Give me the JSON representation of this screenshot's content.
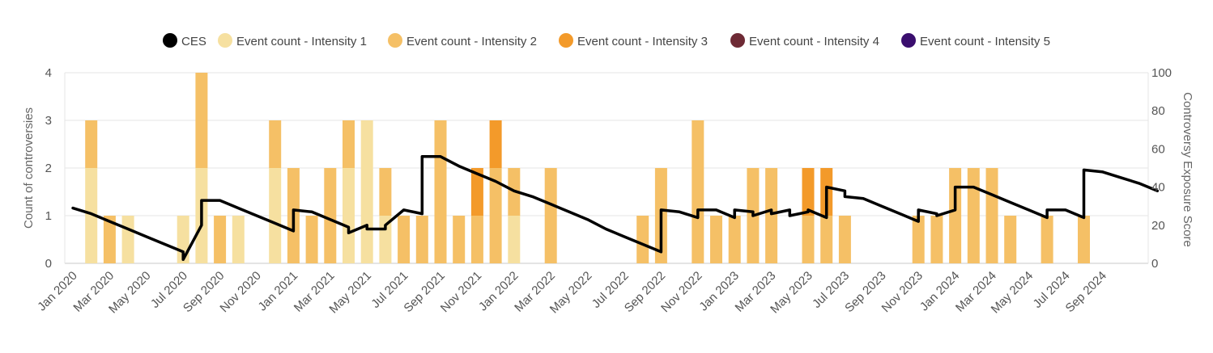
{
  "chart_data": {
    "type": "bar",
    "stacked": true,
    "legend_position": "top-center",
    "grid": true,
    "y_left": {
      "label": "Count of controversies",
      "ticks": [
        "0",
        "1",
        "2",
        "3",
        "4"
      ],
      "range": [
        0,
        4
      ]
    },
    "y_right": {
      "label": "Controversy Exposure Score",
      "ticks": [
        "0",
        "20",
        "40",
        "60",
        "80",
        "100"
      ],
      "range": [
        0,
        100
      ]
    },
    "x_ticks": [
      "Jan 2020",
      "Mar 2020",
      "May 2020",
      "Jul 2020",
      "Sep 2020",
      "Nov 2020",
      "Jan 2021",
      "Mar 2021",
      "May 2021",
      "Jul 2021",
      "Sep 2021",
      "Nov 2021",
      "Jan 2022",
      "Mar 2022",
      "May 2022",
      "Jul 2022",
      "Sep 2022",
      "Nov 2022",
      "Jan 2023",
      "Mar 2023",
      "May 2023",
      "Jul 2023",
      "Sep 2023",
      "Nov 2023",
      "Jan 2024",
      "Mar 2024",
      "May 2024",
      "Jul 2024",
      "Sep 2024"
    ],
    "legend": [
      {
        "name": "CES",
        "color": "#000000"
      },
      {
        "name": "Event count - Intensity 1",
        "color": "#f6e0a0"
      },
      {
        "name": "Event count - Intensity 2",
        "color": "#f5c066"
      },
      {
        "name": "Event count - Intensity 3",
        "color": "#f39a2a"
      },
      {
        "name": "Event count - Intensity 4",
        "color": "#6e2a35"
      },
      {
        "name": "Event count - Intensity 5",
        "color": "#3a0e6e"
      }
    ],
    "bars": [
      {
        "month": "Feb 2020",
        "i1": 2,
        "i2": 1,
        "i3": 0
      },
      {
        "month": "Mar 2020",
        "i1": 0,
        "i2": 1,
        "i3": 0
      },
      {
        "month": "Apr 2020",
        "i1": 1,
        "i2": 0,
        "i3": 0
      },
      {
        "month": "Jul 2020",
        "i1": 1,
        "i2": 0,
        "i3": 0
      },
      {
        "month": "Aug 2020",
        "i1": 2,
        "i2": 2,
        "i3": 0
      },
      {
        "month": "Sep 2020",
        "i1": 0,
        "i2": 1,
        "i3": 0
      },
      {
        "month": "Oct 2020",
        "i1": 1,
        "i2": 0,
        "i3": 0
      },
      {
        "month": "Dec 2020",
        "i1": 2,
        "i2": 1,
        "i3": 0
      },
      {
        "month": "Jan 2021",
        "i1": 0,
        "i2": 2,
        "i3": 0
      },
      {
        "month": "Feb 2021",
        "i1": 0,
        "i2": 1,
        "i3": 0
      },
      {
        "month": "Mar 2021",
        "i1": 0,
        "i2": 2,
        "i3": 0
      },
      {
        "month": "Apr 2021",
        "i1": 2,
        "i2": 1,
        "i3": 0
      },
      {
        "month": "May 2021",
        "i1": 3,
        "i2": 0,
        "i3": 0
      },
      {
        "month": "Jun 2021",
        "i1": 1,
        "i2": 1,
        "i3": 0
      },
      {
        "month": "Jul 2021",
        "i1": 0,
        "i2": 1,
        "i3": 0
      },
      {
        "month": "Aug 2021",
        "i1": 0,
        "i2": 1,
        "i3": 0
      },
      {
        "month": "Sep 2021",
        "i1": 0,
        "i2": 3,
        "i3": 0
      },
      {
        "month": "Oct 2021",
        "i1": 0,
        "i2": 1,
        "i3": 0
      },
      {
        "month": "Nov 2021",
        "i1": 0,
        "i2": 1,
        "i3": 1
      },
      {
        "month": "Dec 2021",
        "i1": 0,
        "i2": 2,
        "i3": 1
      },
      {
        "month": "Jan 2022",
        "i1": 1,
        "i2": 1,
        "i3": 0
      },
      {
        "month": "Mar 2022",
        "i1": 0,
        "i2": 2,
        "i3": 0
      },
      {
        "month": "Aug 2022",
        "i1": 0,
        "i2": 1,
        "i3": 0
      },
      {
        "month": "Sep 2022",
        "i1": 0,
        "i2": 2,
        "i3": 0
      },
      {
        "month": "Nov 2022",
        "i1": 0,
        "i2": 3,
        "i3": 0
      },
      {
        "month": "Dec 2022",
        "i1": 0,
        "i2": 1,
        "i3": 0
      },
      {
        "month": "Jan 2023",
        "i1": 0,
        "i2": 1,
        "i3": 0
      },
      {
        "month": "Feb 2023",
        "i1": 0,
        "i2": 2,
        "i3": 0
      },
      {
        "month": "Mar 2023",
        "i1": 0,
        "i2": 2,
        "i3": 0
      },
      {
        "month": "May 2023",
        "i1": 0,
        "i2": 1,
        "i3": 1
      },
      {
        "month": "Jun 2023",
        "i1": 0,
        "i2": 1,
        "i3": 1
      },
      {
        "month": "Jul 2023",
        "i1": 0,
        "i2": 1,
        "i3": 0
      },
      {
        "month": "Nov 2023",
        "i1": 0,
        "i2": 1,
        "i3": 0
      },
      {
        "month": "Dec 2023",
        "i1": 0,
        "i2": 1,
        "i3": 0
      },
      {
        "month": "Jan 2024",
        "i1": 0,
        "i2": 2,
        "i3": 0
      },
      {
        "month": "Feb 2024",
        "i1": 0,
        "i2": 2,
        "i3": 0
      },
      {
        "month": "Mar 2024",
        "i1": 0,
        "i2": 2,
        "i3": 0
      },
      {
        "month": "Apr 2024",
        "i1": 0,
        "i2": 1,
        "i3": 0
      },
      {
        "month": "Jun 2024",
        "i1": 0,
        "i2": 1,
        "i3": 0
      },
      {
        "month": "Aug 2024",
        "i1": 0,
        "i2": 1,
        "i3": 0
      }
    ],
    "ces_line": [
      [
        "Jan 2020",
        29
      ],
      [
        "Feb 2020",
        26
      ],
      [
        "Mar 2020",
        22
      ],
      [
        "Apr 2020",
        18
      ],
      [
        "May 2020",
        14
      ],
      [
        "Jun 2020",
        10
      ],
      [
        "Jul 2020",
        6
      ],
      [
        "Jul 2020",
        2
      ],
      [
        "Aug 2020",
        20
      ],
      [
        "Aug 2020",
        33
      ],
      [
        "Sep 2020",
        33
      ],
      [
        "Oct 2020",
        29
      ],
      [
        "Nov 2020",
        25
      ],
      [
        "Dec 2020",
        21
      ],
      [
        "Jan 2021",
        17
      ],
      [
        "Jan 2021",
        28
      ],
      [
        "Feb 2021",
        27
      ],
      [
        "Mar 2021",
        23
      ],
      [
        "Apr 2021",
        19
      ],
      [
        "Apr 2021",
        16
      ],
      [
        "May 2021",
        20
      ],
      [
        "May 2021",
        18
      ],
      [
        "Jun 2021",
        18
      ],
      [
        "Jun 2021",
        20
      ],
      [
        "Jul 2021",
        28
      ],
      [
        "Aug 2021",
        26
      ],
      [
        "Aug 2021",
        56
      ],
      [
        "Sep 2021",
        56
      ],
      [
        "Oct 2021",
        51
      ],
      [
        "Nov 2021",
        47
      ],
      [
        "Dec 2021",
        43
      ],
      [
        "Jan 2022",
        38
      ],
      [
        "Feb 2022",
        35
      ],
      [
        "Mar 2022",
        31
      ],
      [
        "Apr 2022",
        27
      ],
      [
        "May 2022",
        23
      ],
      [
        "Jun 2022",
        18
      ],
      [
        "Jul 2022",
        14
      ],
      [
        "Aug 2022",
        10
      ],
      [
        "Sep 2022",
        6
      ],
      [
        "Sep 2022",
        28
      ],
      [
        "Oct 2022",
        27
      ],
      [
        "Nov 2022",
        24
      ],
      [
        "Nov 2022",
        28
      ],
      [
        "Dec 2022",
        28
      ],
      [
        "Jan 2023",
        24
      ],
      [
        "Jan 2023",
        28
      ],
      [
        "Feb 2023",
        27
      ],
      [
        "Feb 2023",
        25
      ],
      [
        "Mar 2023",
        28
      ],
      [
        "Mar 2023",
        26
      ],
      [
        "Apr 2023",
        28
      ],
      [
        "Apr 2023",
        25
      ],
      [
        "May 2023",
        27
      ],
      [
        "May 2023",
        28
      ],
      [
        "Jun 2023",
        24
      ],
      [
        "Jun 2023",
        40
      ],
      [
        "Jul 2023",
        38
      ],
      [
        "Jul 2023",
        35
      ],
      [
        "Aug 2023",
        34
      ],
      [
        "Sep 2023",
        30
      ],
      [
        "Oct 2023",
        26
      ],
      [
        "Nov 2023",
        22
      ],
      [
        "Nov 2023",
        28
      ],
      [
        "Dec 2023",
        26
      ],
      [
        "Dec 2023",
        25
      ],
      [
        "Jan 2024",
        28
      ],
      [
        "Jan 2024",
        40
      ],
      [
        "Feb 2024",
        40
      ],
      [
        "Mar 2024",
        36
      ],
      [
        "Apr 2024",
        32
      ],
      [
        "May 2024",
        28
      ],
      [
        "Jun 2024",
        24
      ],
      [
        "Jun 2024",
        28
      ],
      [
        "Jul 2024",
        28
      ],
      [
        "Aug 2024",
        24
      ],
      [
        "Aug 2024",
        49
      ],
      [
        "Sep 2024",
        48
      ],
      [
        "Oct 2024",
        45
      ],
      [
        "Nov 2024",
        42
      ],
      [
        "Dec 2024",
        38
      ]
    ]
  }
}
